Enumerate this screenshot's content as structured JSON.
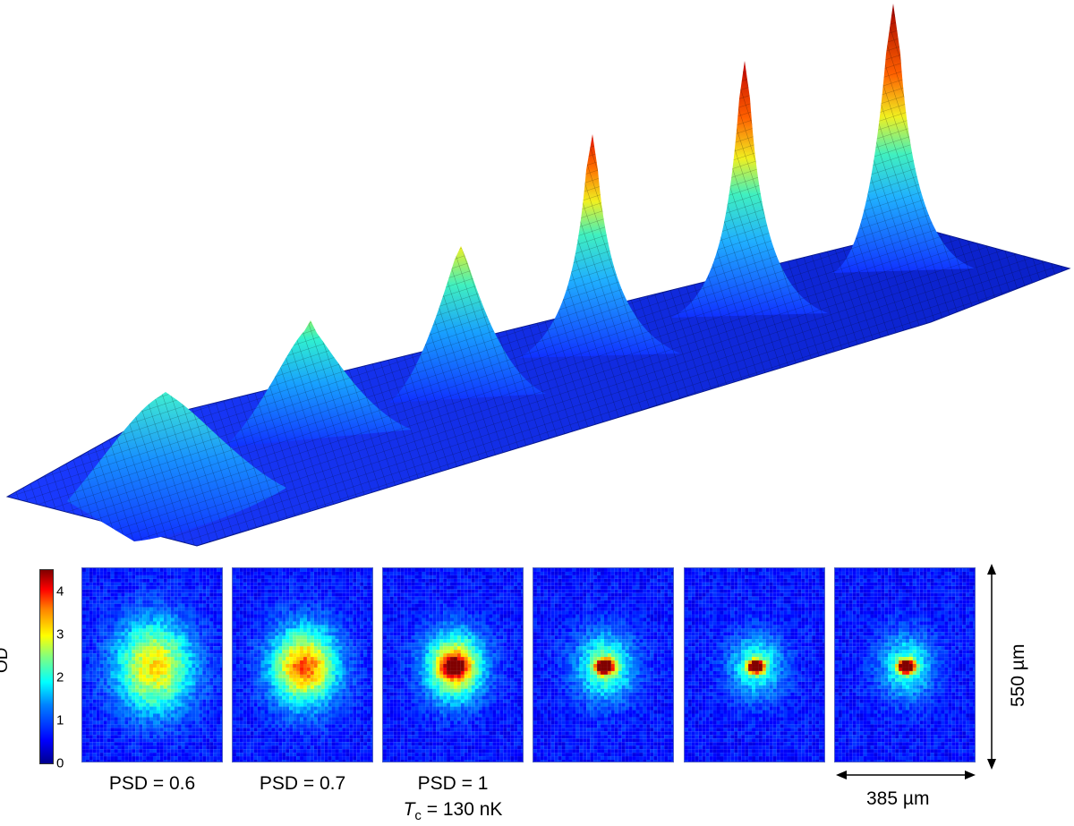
{
  "colorbar": {
    "title": "OD",
    "ticks": [
      {
        "label": "0",
        "value": 0
      },
      {
        "label": "1",
        "value": 1
      },
      {
        "label": "2",
        "value": 2
      },
      {
        "label": "3",
        "value": 3
      },
      {
        "label": "4",
        "value": 4
      }
    ],
    "range": [
      0,
      4.5
    ],
    "colors": [
      "#00008f",
      "#0000ff",
      "#0080ff",
      "#00ffff",
      "#80ff80",
      "#ffff00",
      "#ff8000",
      "#ff0000",
      "#800000"
    ]
  },
  "panels": [
    {
      "label": "PSD = 0.6",
      "sublabel_italic": "",
      "sublabel_sub": "",
      "sublabel_rest": ""
    },
    {
      "label": "PSD = 0.7",
      "sublabel_italic": "",
      "sublabel_sub": "",
      "sublabel_rest": ""
    },
    {
      "label": "PSD = 1",
      "sublabel_italic": "T",
      "sublabel_sub": "c",
      "sublabel_rest": " = 130 nK"
    },
    {
      "label": "",
      "sublabel_italic": "",
      "sublabel_sub": "",
      "sublabel_rest": ""
    },
    {
      "label": "",
      "sublabel_italic": "",
      "sublabel_sub": "",
      "sublabel_rest": ""
    },
    {
      "label": "",
      "sublabel_italic": "",
      "sublabel_sub": "",
      "sublabel_rest": ""
    }
  ],
  "scale": {
    "vertical": "550 µm",
    "horizontal": "385 µm"
  },
  "peak_colors": [
    "#1fe0d0",
    "#60f090",
    "#d8f040",
    "#e03010",
    "#d00000",
    "#b00000"
  ]
}
